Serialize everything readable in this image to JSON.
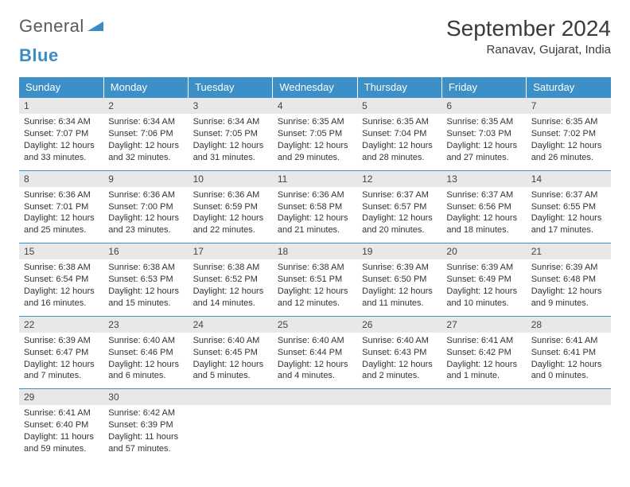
{
  "logo": {
    "text1": "General",
    "text2": "Blue"
  },
  "title": "September 2024",
  "location": "Ranavav, Gujarat, India",
  "colors": {
    "header_bg": "#3d8fc7",
    "header_fg": "#ffffff",
    "daynum_bg": "#e8e8e8",
    "text": "#333333",
    "logo_gray": "#5a5a5a",
    "logo_blue": "#3b8bc4"
  },
  "dayNames": [
    "Sunday",
    "Monday",
    "Tuesday",
    "Wednesday",
    "Thursday",
    "Friday",
    "Saturday"
  ],
  "weeks": [
    [
      {
        "n": "1",
        "sr": "Sunrise: 6:34 AM",
        "ss": "Sunset: 7:07 PM",
        "dl": "Daylight: 12 hours and 33 minutes."
      },
      {
        "n": "2",
        "sr": "Sunrise: 6:34 AM",
        "ss": "Sunset: 7:06 PM",
        "dl": "Daylight: 12 hours and 32 minutes."
      },
      {
        "n": "3",
        "sr": "Sunrise: 6:34 AM",
        "ss": "Sunset: 7:05 PM",
        "dl": "Daylight: 12 hours and 31 minutes."
      },
      {
        "n": "4",
        "sr": "Sunrise: 6:35 AM",
        "ss": "Sunset: 7:05 PM",
        "dl": "Daylight: 12 hours and 29 minutes."
      },
      {
        "n": "5",
        "sr": "Sunrise: 6:35 AM",
        "ss": "Sunset: 7:04 PM",
        "dl": "Daylight: 12 hours and 28 minutes."
      },
      {
        "n": "6",
        "sr": "Sunrise: 6:35 AM",
        "ss": "Sunset: 7:03 PM",
        "dl": "Daylight: 12 hours and 27 minutes."
      },
      {
        "n": "7",
        "sr": "Sunrise: 6:35 AM",
        "ss": "Sunset: 7:02 PM",
        "dl": "Daylight: 12 hours and 26 minutes."
      }
    ],
    [
      {
        "n": "8",
        "sr": "Sunrise: 6:36 AM",
        "ss": "Sunset: 7:01 PM",
        "dl": "Daylight: 12 hours and 25 minutes."
      },
      {
        "n": "9",
        "sr": "Sunrise: 6:36 AM",
        "ss": "Sunset: 7:00 PM",
        "dl": "Daylight: 12 hours and 23 minutes."
      },
      {
        "n": "10",
        "sr": "Sunrise: 6:36 AM",
        "ss": "Sunset: 6:59 PM",
        "dl": "Daylight: 12 hours and 22 minutes."
      },
      {
        "n": "11",
        "sr": "Sunrise: 6:36 AM",
        "ss": "Sunset: 6:58 PM",
        "dl": "Daylight: 12 hours and 21 minutes."
      },
      {
        "n": "12",
        "sr": "Sunrise: 6:37 AM",
        "ss": "Sunset: 6:57 PM",
        "dl": "Daylight: 12 hours and 20 minutes."
      },
      {
        "n": "13",
        "sr": "Sunrise: 6:37 AM",
        "ss": "Sunset: 6:56 PM",
        "dl": "Daylight: 12 hours and 18 minutes."
      },
      {
        "n": "14",
        "sr": "Sunrise: 6:37 AM",
        "ss": "Sunset: 6:55 PM",
        "dl": "Daylight: 12 hours and 17 minutes."
      }
    ],
    [
      {
        "n": "15",
        "sr": "Sunrise: 6:38 AM",
        "ss": "Sunset: 6:54 PM",
        "dl": "Daylight: 12 hours and 16 minutes."
      },
      {
        "n": "16",
        "sr": "Sunrise: 6:38 AM",
        "ss": "Sunset: 6:53 PM",
        "dl": "Daylight: 12 hours and 15 minutes."
      },
      {
        "n": "17",
        "sr": "Sunrise: 6:38 AM",
        "ss": "Sunset: 6:52 PM",
        "dl": "Daylight: 12 hours and 14 minutes."
      },
      {
        "n": "18",
        "sr": "Sunrise: 6:38 AM",
        "ss": "Sunset: 6:51 PM",
        "dl": "Daylight: 12 hours and 12 minutes."
      },
      {
        "n": "19",
        "sr": "Sunrise: 6:39 AM",
        "ss": "Sunset: 6:50 PM",
        "dl": "Daylight: 12 hours and 11 minutes."
      },
      {
        "n": "20",
        "sr": "Sunrise: 6:39 AM",
        "ss": "Sunset: 6:49 PM",
        "dl": "Daylight: 12 hours and 10 minutes."
      },
      {
        "n": "21",
        "sr": "Sunrise: 6:39 AM",
        "ss": "Sunset: 6:48 PM",
        "dl": "Daylight: 12 hours and 9 minutes."
      }
    ],
    [
      {
        "n": "22",
        "sr": "Sunrise: 6:39 AM",
        "ss": "Sunset: 6:47 PM",
        "dl": "Daylight: 12 hours and 7 minutes."
      },
      {
        "n": "23",
        "sr": "Sunrise: 6:40 AM",
        "ss": "Sunset: 6:46 PM",
        "dl": "Daylight: 12 hours and 6 minutes."
      },
      {
        "n": "24",
        "sr": "Sunrise: 6:40 AM",
        "ss": "Sunset: 6:45 PM",
        "dl": "Daylight: 12 hours and 5 minutes."
      },
      {
        "n": "25",
        "sr": "Sunrise: 6:40 AM",
        "ss": "Sunset: 6:44 PM",
        "dl": "Daylight: 12 hours and 4 minutes."
      },
      {
        "n": "26",
        "sr": "Sunrise: 6:40 AM",
        "ss": "Sunset: 6:43 PM",
        "dl": "Daylight: 12 hours and 2 minutes."
      },
      {
        "n": "27",
        "sr": "Sunrise: 6:41 AM",
        "ss": "Sunset: 6:42 PM",
        "dl": "Daylight: 12 hours and 1 minute."
      },
      {
        "n": "28",
        "sr": "Sunrise: 6:41 AM",
        "ss": "Sunset: 6:41 PM",
        "dl": "Daylight: 12 hours and 0 minutes."
      }
    ],
    [
      {
        "n": "29",
        "sr": "Sunrise: 6:41 AM",
        "ss": "Sunset: 6:40 PM",
        "dl": "Daylight: 11 hours and 59 minutes."
      },
      {
        "n": "30",
        "sr": "Sunrise: 6:42 AM",
        "ss": "Sunset: 6:39 PM",
        "dl": "Daylight: 11 hours and 57 minutes."
      },
      {
        "n": "",
        "sr": "",
        "ss": "",
        "dl": ""
      },
      {
        "n": "",
        "sr": "",
        "ss": "",
        "dl": ""
      },
      {
        "n": "",
        "sr": "",
        "ss": "",
        "dl": ""
      },
      {
        "n": "",
        "sr": "",
        "ss": "",
        "dl": ""
      },
      {
        "n": "",
        "sr": "",
        "ss": "",
        "dl": ""
      }
    ]
  ]
}
